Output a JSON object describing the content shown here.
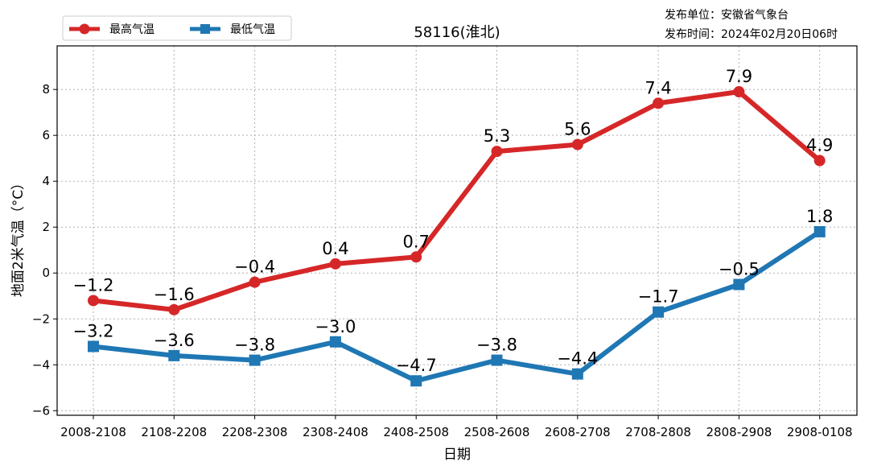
{
  "publisher": {
    "unit": "发布单位：安徽省气象台",
    "time": "发布时间：2024年02月20日06时"
  },
  "chart_data": {
    "type": "line",
    "title": "58116(淮北)",
    "xlabel": "日期",
    "ylabel": "地面2米气温（°C）",
    "categories": [
      "2008-2108",
      "2108-2208",
      "2208-2308",
      "2308-2408",
      "2408-2508",
      "2508-2608",
      "2608-2708",
      "2708-2808",
      "2808-2908",
      "2908-0108"
    ],
    "ylim": [
      -6.2,
      9.9
    ],
    "yticks": [
      -6,
      -4,
      -2,
      0,
      2,
      4,
      6,
      8
    ],
    "grid": true,
    "legend_position": "top-left",
    "series": [
      {
        "name": "最高气温",
        "color": "#d62728",
        "marker": "circle",
        "values": [
          -1.2,
          -1.6,
          -0.4,
          0.4,
          0.7,
          5.3,
          5.6,
          7.4,
          7.9,
          4.9
        ]
      },
      {
        "name": "最低气温",
        "color": "#1f77b4",
        "marker": "square",
        "values": [
          -3.2,
          -3.6,
          -3.8,
          -3.0,
          -4.7,
          -3.8,
          -4.4,
          -1.7,
          -0.5,
          1.8
        ]
      }
    ]
  }
}
